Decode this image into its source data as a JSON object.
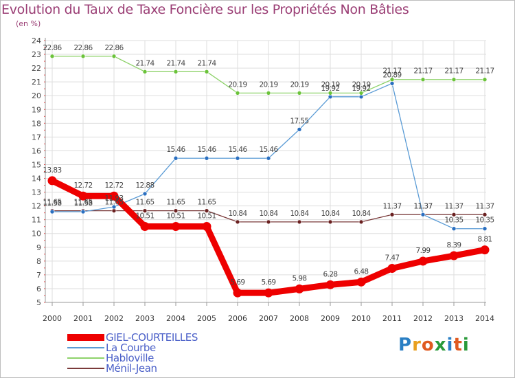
{
  "title": "Evolution du Taux de Taxe Foncière sur les Propriétés Non Bâties",
  "subtitle": "(en %)",
  "brand": {
    "text": "Proxiti",
    "letter_colors": [
      "#2a7fc4",
      "#e8a020",
      "#e05a20",
      "#2a9a3a",
      "#2a7fc4",
      "#e05a20",
      "#2a9a3a"
    ]
  },
  "chart_data": {
    "type": "line",
    "title": "Evolution du Taux de Taxe Foncière sur les Propriétés Non Bâties",
    "ylabel": "(en %)",
    "xlabel": "",
    "ylim": [
      5,
      24
    ],
    "yticks": [
      5,
      6,
      7,
      8,
      9,
      10,
      11,
      12,
      13,
      14,
      15,
      16,
      17,
      18,
      19,
      20,
      21,
      22,
      23,
      24
    ],
    "categories": [
      "2000",
      "2001",
      "2002",
      "2003",
      "2004",
      "2005",
      "2006",
      "2007",
      "2008",
      "2009",
      "2010",
      "2011",
      "2012",
      "2013",
      "2014"
    ],
    "legend_position": "bottom-left",
    "series": [
      {
        "name": "GIEL-COURTEILLES",
        "color": "#ee0000",
        "marker_color": "#ee0000",
        "thick": true,
        "values": [
          13.83,
          12.72,
          12.72,
          10.51,
          10.51,
          10.51,
          5.69,
          5.69,
          5.98,
          6.28,
          6.48,
          7.47,
          7.99,
          8.39,
          8.81
        ],
        "labels": [
          "13.83",
          "12.72",
          "12.72",
          "10.51",
          "10.51",
          "10.51",
          "5.69",
          "5.69",
          "5.98",
          "6.28",
          "6.48",
          "7.47",
          "7.99",
          "8.39",
          "8.81"
        ]
      },
      {
        "name": "La Courbe",
        "color": "#5a9bd5",
        "marker_color": "#2a6fc0",
        "thick": false,
        "values": [
          11.58,
          11.58,
          11.93,
          12.88,
          15.46,
          15.46,
          15.46,
          15.46,
          17.55,
          19.92,
          19.92,
          20.89,
          11.37,
          10.35,
          10.35
        ],
        "labels": [
          "11.58",
          "11.58",
          "11.93",
          "12.88",
          "15.46",
          "15.46",
          "15.46",
          "15.46",
          "17.55",
          "19.92",
          "19.92",
          "20.89",
          "11.37",
          "10.35",
          "10.35"
        ]
      },
      {
        "name": "Habloville",
        "color": "#8ed26a",
        "marker_color": "#6bc33a",
        "thick": false,
        "values": [
          22.86,
          22.86,
          22.86,
          21.74,
          21.74,
          21.74,
          20.19,
          20.19,
          20.19,
          20.19,
          20.19,
          21.17,
          21.17,
          21.17,
          21.17
        ],
        "labels": [
          "22.86",
          "22.86",
          "22.86",
          "21.74",
          "21.74",
          "21.74",
          "20.19",
          "20.19",
          "20.19",
          "20.19",
          "20.19",
          "21.17",
          "21.17",
          "21.17",
          "21.17"
        ]
      },
      {
        "name": "Ménil-Jean",
        "color": "#7a3a3a",
        "marker_color": "#6a2020",
        "thick": false,
        "values": [
          11.65,
          11.65,
          11.65,
          11.65,
          11.65,
          11.65,
          10.84,
          10.84,
          10.84,
          10.84,
          10.84,
          11.37,
          11.37,
          11.37,
          11.37
        ],
        "labels": [
          "11.65",
          "11.65",
          "11.65",
          "11.65",
          "11.65",
          "11.65",
          "10.84",
          "10.84",
          "10.84",
          "10.84",
          "10.84",
          "11.37",
          "11.37",
          "11.37",
          "11.37"
        ]
      }
    ]
  }
}
